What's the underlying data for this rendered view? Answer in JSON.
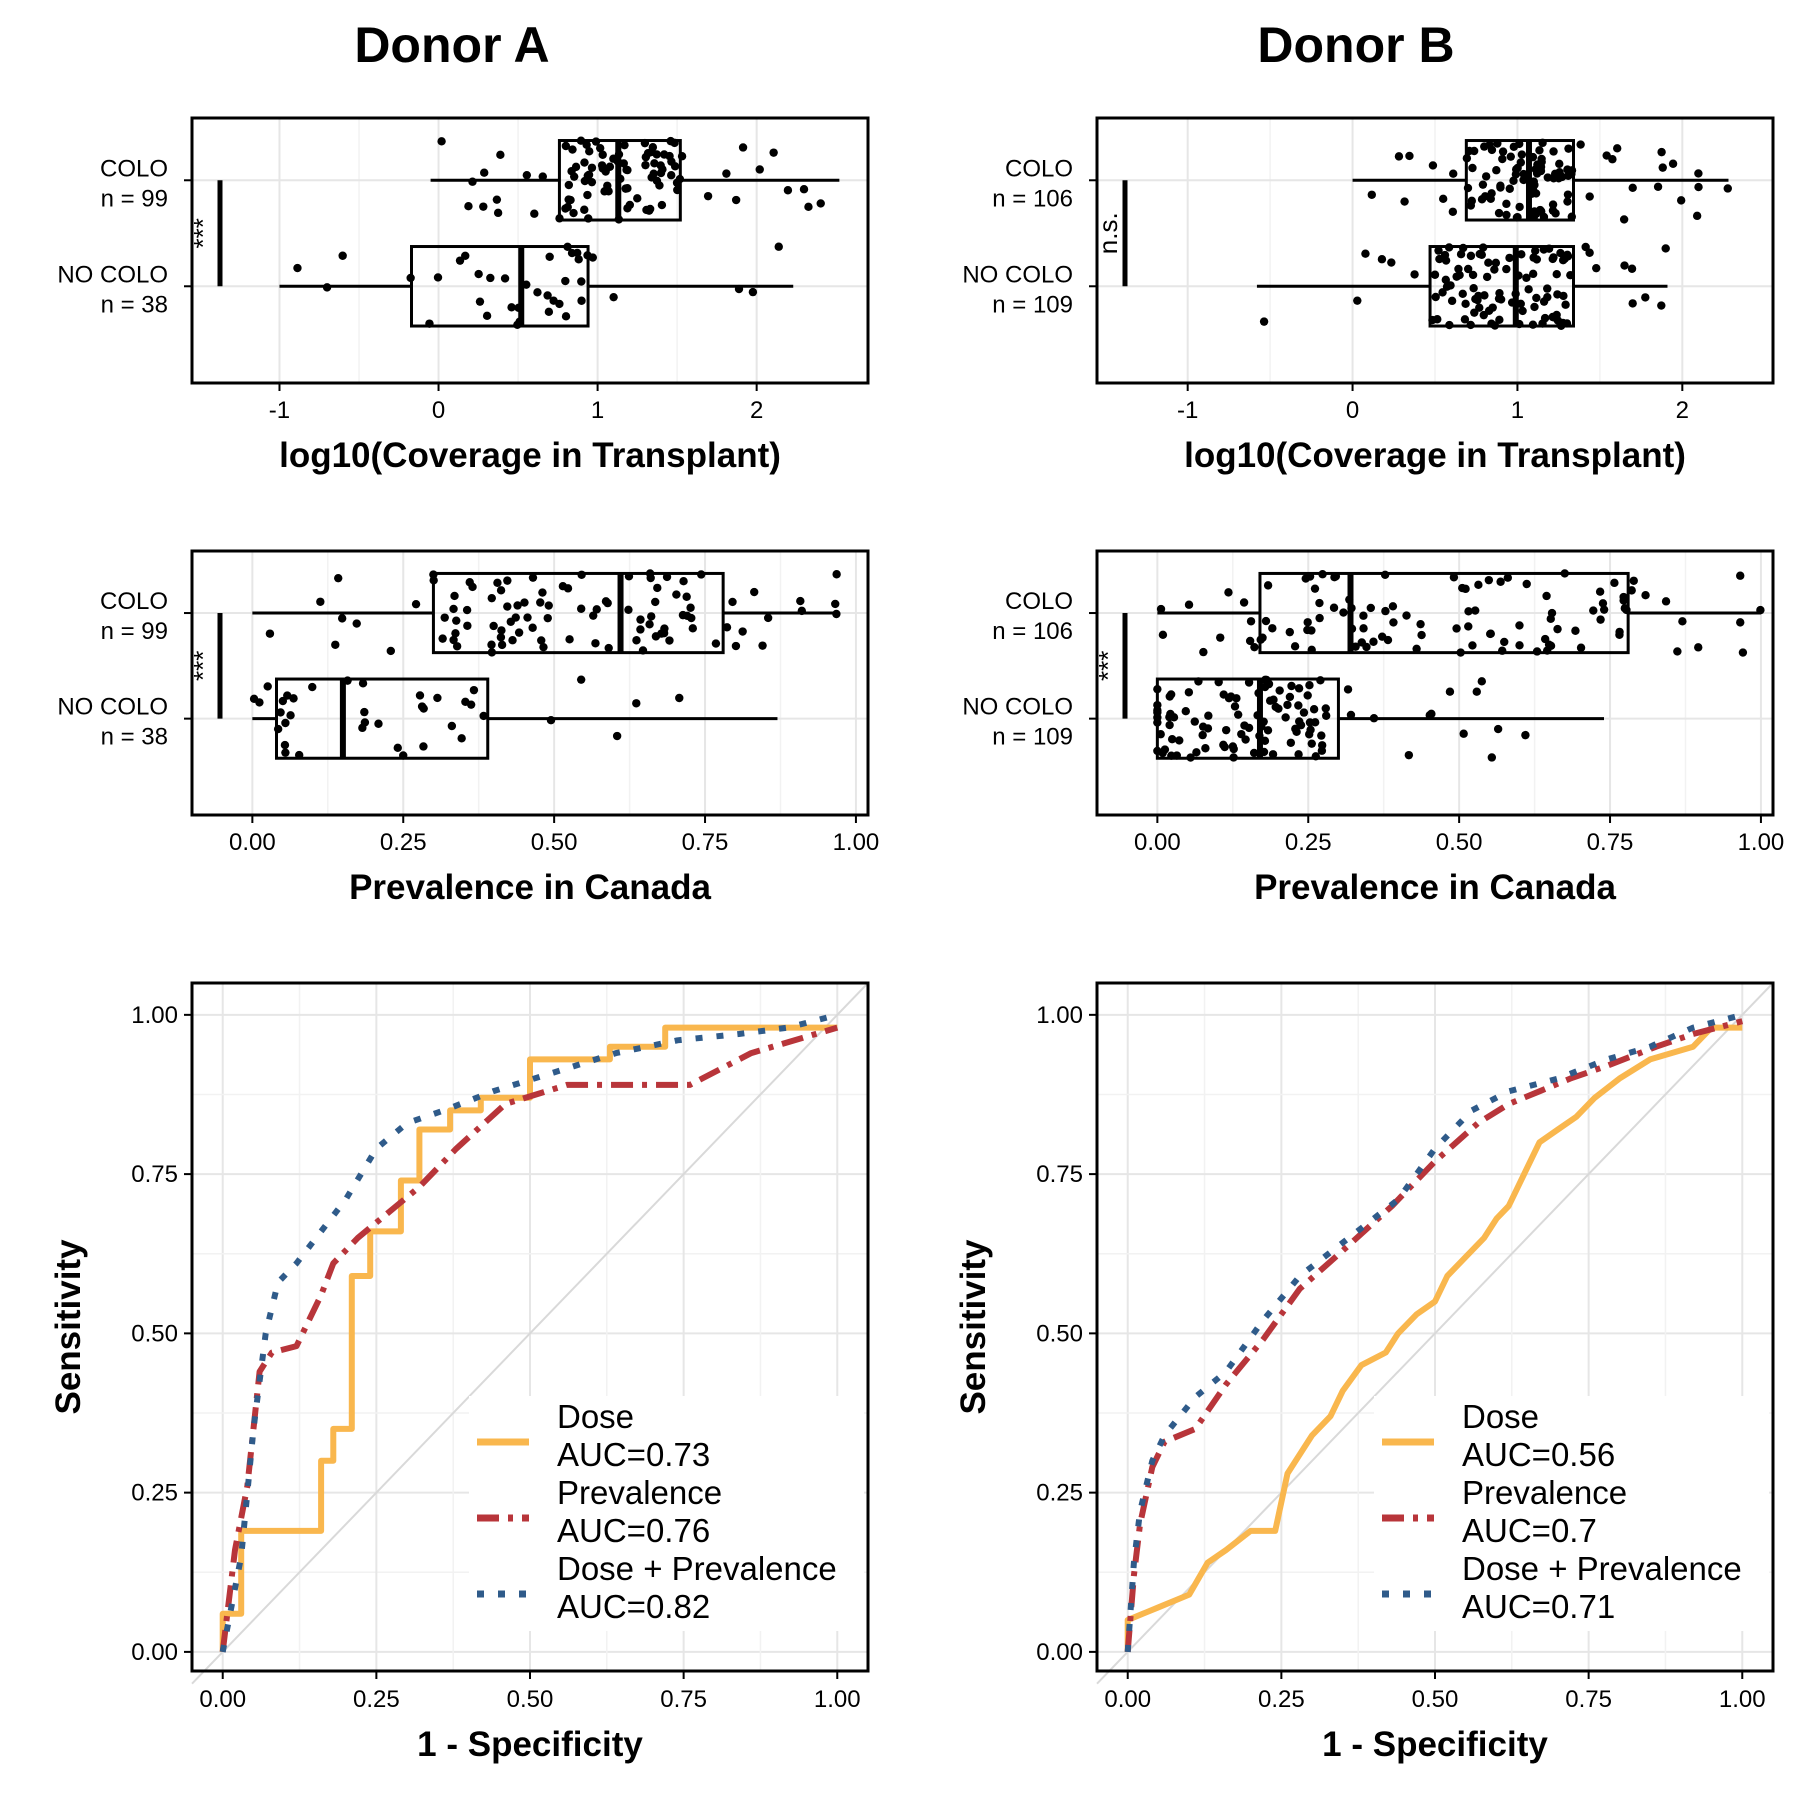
{
  "titles": {
    "donor_a": "Donor A",
    "donor_b": "Donor B"
  },
  "chart_data": [
    {
      "id": "coverage-a",
      "type": "box",
      "title": "Donor A",
      "xlabel": "log10(Coverage in Transplant)",
      "xlim": [
        -1.55,
        2.7
      ],
      "xticks": [
        -1,
        0,
        1,
        2
      ],
      "xtick_labels": [
        "-1",
        "0",
        "1",
        "2"
      ],
      "significance": "***",
      "groups": [
        {
          "label": "COLO",
          "n_label": "n = 99",
          "min": -0.05,
          "q1": 0.76,
          "median": 1.13,
          "q3": 1.52,
          "max": 2.52
        },
        {
          "label": "NO COLO",
          "n_label": "n = 38",
          "min": -1.0,
          "q1": -0.17,
          "median": 0.52,
          "q3": 0.94,
          "max": 2.23
        }
      ]
    },
    {
      "id": "coverage-b",
      "type": "box",
      "title": "Donor B",
      "xlabel": "log10(Coverage in Transplant)",
      "xlim": [
        -1.55,
        2.55
      ],
      "xticks": [
        -1,
        0,
        1,
        2
      ],
      "xtick_labels": [
        "-1",
        "0",
        "1",
        "2"
      ],
      "significance": "n.s.",
      "groups": [
        {
          "label": "COLO",
          "n_label": "n = 106",
          "min": 0.0,
          "q1": 0.69,
          "median": 1.07,
          "q3": 1.34,
          "max": 2.28
        },
        {
          "label": "NO COLO",
          "n_label": "n = 109",
          "min": -0.58,
          "q1": 0.47,
          "median": 0.99,
          "q3": 1.34,
          "max": 1.91
        }
      ]
    },
    {
      "id": "prevalence-a",
      "type": "box",
      "xlabel": "Prevalence in Canada",
      "xlim": [
        -0.1,
        1.02
      ],
      "xticks": [
        0,
        0.25,
        0.5,
        0.75,
        1
      ],
      "xtick_labels": [
        "0.00",
        "0.25",
        "0.50",
        "0.75",
        "1.00"
      ],
      "significance": "***",
      "groups": [
        {
          "label": "COLO",
          "n_label": "n = 99",
          "min": 0.0,
          "q1": 0.3,
          "median": 0.61,
          "q3": 0.78,
          "max": 0.97
        },
        {
          "label": "NO COLO",
          "n_label": "n = 38",
          "min": 0.0,
          "q1": 0.04,
          "median": 0.15,
          "q3": 0.39,
          "max": 0.87
        }
      ]
    },
    {
      "id": "prevalence-b",
      "type": "box",
      "xlabel": "Prevalence in Canada",
      "xlim": [
        -0.1,
        1.02
      ],
      "xticks": [
        0,
        0.25,
        0.5,
        0.75,
        1
      ],
      "xtick_labels": [
        "0.00",
        "0.25",
        "0.50",
        "0.75",
        "1.00"
      ],
      "significance": "***",
      "groups": [
        {
          "label": "COLO",
          "n_label": "n = 106",
          "min": 0.0,
          "q1": 0.17,
          "median": 0.32,
          "q3": 0.78,
          "max": 1.0
        },
        {
          "label": "NO COLO",
          "n_label": "n = 109",
          "min": 0.0,
          "q1": 0.0,
          "median": 0.17,
          "q3": 0.3,
          "max": 0.74
        }
      ]
    },
    {
      "id": "roc-a",
      "type": "line",
      "xlabel": "1 - Specificity",
      "ylabel": "Sensitivity",
      "xlim": [
        -0.05,
        1.05
      ],
      "ylim": [
        -0.03,
        1.05
      ],
      "ticks": [
        0,
        0.25,
        0.5,
        0.75,
        1
      ],
      "tick_labels": [
        "0.00",
        "0.25",
        "0.50",
        "0.75",
        "1.00"
      ],
      "legend_position": "bottom-right",
      "series": [
        {
          "name": "Dose",
          "auc_label": "AUC=0.73",
          "color": "#F9B74E",
          "style": "solid",
          "x": [
            0,
            0,
            0.03,
            0.03,
            0.16,
            0.16,
            0.18,
            0.18,
            0.21,
            0.21,
            0.24,
            0.24,
            0.29,
            0.29,
            0.32,
            0.32,
            0.37,
            0.37,
            0.42,
            0.42,
            0.5,
            0.5,
            0.63,
            0.63,
            0.72,
            0.72,
            1
          ],
          "y": [
            0,
            0.06,
            0.06,
            0.19,
            0.19,
            0.3,
            0.3,
            0.35,
            0.35,
            0.59,
            0.59,
            0.66,
            0.66,
            0.74,
            0.74,
            0.82,
            0.82,
            0.85,
            0.85,
            0.87,
            0.87,
            0.93,
            0.93,
            0.95,
            0.95,
            0.98,
            0.98
          ]
        },
        {
          "name": "Prevalence",
          "auc_label": "AUC=0.76",
          "color": "#B8353A",
          "style": "dashdot",
          "x": [
            0,
            0.02,
            0.04,
            0.06,
            0.08,
            0.12,
            0.16,
            0.18,
            0.22,
            0.32,
            0.38,
            0.46,
            0.56,
            0.66,
            0.76,
            0.86,
            1
          ],
          "y": [
            0,
            0.16,
            0.26,
            0.44,
            0.47,
            0.48,
            0.56,
            0.61,
            0.65,
            0.73,
            0.79,
            0.86,
            0.89,
            0.89,
            0.89,
            0.94,
            0.98
          ]
        },
        {
          "name": "Dose + Prevalence",
          "auc_label": "AUC=0.82",
          "color": "#2F5B8A",
          "style": "dotted",
          "x": [
            0,
            0.03,
            0.05,
            0.07,
            0.09,
            0.12,
            0.16,
            0.2,
            0.25,
            0.3,
            0.36,
            0.44,
            0.54,
            0.64,
            0.74,
            0.84,
            0.92,
            1
          ],
          "y": [
            0,
            0.15,
            0.35,
            0.5,
            0.58,
            0.61,
            0.66,
            0.71,
            0.79,
            0.83,
            0.85,
            0.88,
            0.91,
            0.94,
            0.96,
            0.97,
            0.98,
            1
          ]
        }
      ]
    },
    {
      "id": "roc-b",
      "type": "line",
      "xlabel": "1 - Specificity",
      "ylabel": "Sensitivity",
      "xlim": [
        -0.05,
        1.05
      ],
      "ylim": [
        -0.03,
        1.05
      ],
      "ticks": [
        0,
        0.25,
        0.5,
        0.75,
        1
      ],
      "tick_labels": [
        "0.00",
        "0.25",
        "0.50",
        "0.75",
        "1.00"
      ],
      "legend_position": "bottom-right",
      "series": [
        {
          "name": "Dose",
          "auc_label": "AUC=0.56",
          "color": "#F9B74E",
          "style": "solid",
          "x": [
            0,
            0,
            0.05,
            0.1,
            0.13,
            0.16,
            0.2,
            0.24,
            0.26,
            0.28,
            0.3,
            0.33,
            0.35,
            0.38,
            0.42,
            0.44,
            0.47,
            0.5,
            0.52,
            0.55,
            0.58,
            0.6,
            0.62,
            0.65,
            0.67,
            0.7,
            0.73,
            0.76,
            0.8,
            0.85,
            0.92,
            0.95,
            1
          ],
          "y": [
            0,
            0.05,
            0.07,
            0.09,
            0.14,
            0.16,
            0.19,
            0.19,
            0.28,
            0.31,
            0.34,
            0.37,
            0.41,
            0.45,
            0.47,
            0.5,
            0.53,
            0.55,
            0.59,
            0.62,
            0.65,
            0.68,
            0.7,
            0.76,
            0.8,
            0.82,
            0.84,
            0.87,
            0.9,
            0.93,
            0.95,
            0.98,
            0.98
          ]
        },
        {
          "name": "Prevalence",
          "auc_label": "AUC=0.7",
          "color": "#B8353A",
          "style": "dashdot",
          "x": [
            0,
            0.01,
            0.02,
            0.04,
            0.06,
            0.11,
            0.16,
            0.22,
            0.28,
            0.35,
            0.43,
            0.5,
            0.57,
            0.62,
            0.67,
            0.72,
            0.78,
            0.86,
            0.92,
            1
          ],
          "y": [
            0,
            0.12,
            0.2,
            0.29,
            0.33,
            0.35,
            0.42,
            0.49,
            0.57,
            0.63,
            0.7,
            0.77,
            0.83,
            0.86,
            0.88,
            0.9,
            0.92,
            0.95,
            0.97,
            0.99
          ]
        },
        {
          "name": "Dose + Prevalence",
          "auc_label": "AUC=0.71",
          "color": "#2F5B8A",
          "style": "dotted",
          "x": [
            0,
            0.01,
            0.02,
            0.04,
            0.06,
            0.11,
            0.16,
            0.22,
            0.28,
            0.36,
            0.44,
            0.5,
            0.56,
            0.62,
            0.7,
            0.78,
            0.85,
            0.92,
            1
          ],
          "y": [
            0,
            0.14,
            0.22,
            0.3,
            0.34,
            0.4,
            0.44,
            0.52,
            0.59,
            0.65,
            0.71,
            0.79,
            0.85,
            0.88,
            0.9,
            0.93,
            0.95,
            0.98,
            1
          ]
        }
      ]
    }
  ]
}
